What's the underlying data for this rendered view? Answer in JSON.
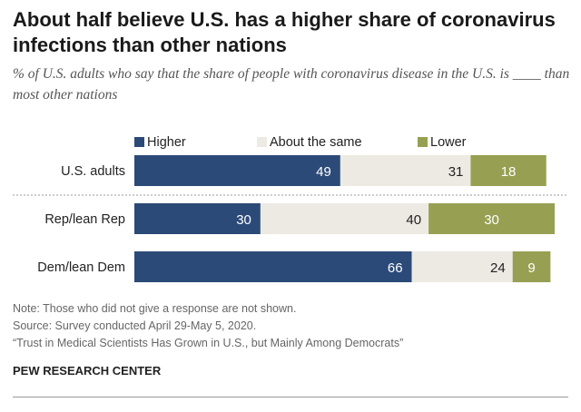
{
  "title": "About half believe U.S. has a higher share of coronavirus infections than other nations",
  "subtitle": "% of U.S. adults who say that the share of people with coronavirus disease in the U.S. is ____ than most other nations",
  "chart_data": {
    "type": "bar",
    "orientation": "horizontal-stacked",
    "categories": [
      "U.S. adults",
      "Rep/lean Rep",
      "Dem/lean Dem"
    ],
    "series": [
      {
        "name": "Higher",
        "values": [
          49,
          30,
          66
        ],
        "color": "#2c4a78"
      },
      {
        "name": "About the same",
        "values": [
          31,
          40,
          24
        ],
        "color": "#edeae3"
      },
      {
        "name": "Lower",
        "values": [
          18,
          30,
          9
        ],
        "color": "#97a052"
      }
    ],
    "xlim": [
      0,
      100
    ],
    "legend": "top",
    "grid": false
  },
  "notes": [
    "Note: Those who did not give a response are not shown.",
    "Source: Survey conducted April 29-May 5, 2020.",
    "“Trust in Medical Scientists Has Grown in U.S., but Mainly Among Democrats”"
  ],
  "brand": "PEW RESEARCH CENTER"
}
